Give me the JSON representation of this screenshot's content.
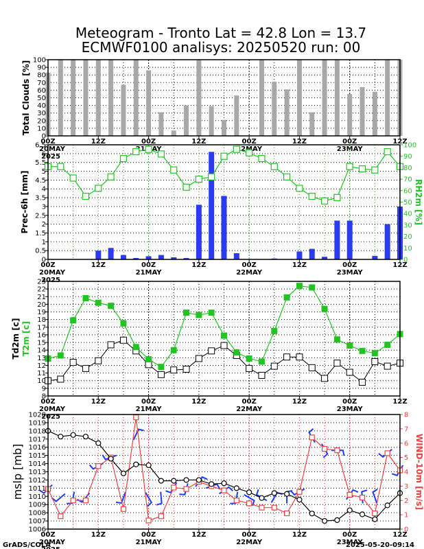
{
  "title": {
    "line1": "Meteogram - Tronto Lat = 42.8 Lon = 13.7",
    "line2": "ECMWF0100 analisys: 20250520 run: 00"
  },
  "footer": {
    "left": "GrADS/COLA",
    "right": "2025-05-20-09:14"
  },
  "colors": {
    "cloud_bar": "#a8a8a8",
    "precip_bar": "#2a3bf0",
    "rh": "#22c422",
    "t2m": "#22c422",
    "td2m": "#000000",
    "mslp": "#000000",
    "wind_speed": "#f04040",
    "wind_barb": "#1a3cff",
    "day_grid": "#22aa22",
    "wind_grid": "#e03030"
  },
  "chart_data": [
    {
      "type": "bar",
      "name": "clouds",
      "ylabel": "Total Clouds [%]",
      "ylim": [
        0,
        100
      ],
      "yticks": [
        0,
        10,
        20,
        30,
        40,
        50,
        60,
        70,
        80,
        90,
        100
      ],
      "x": [
        0,
        3,
        6,
        9,
        12,
        15,
        18,
        21,
        24,
        27,
        30,
        33,
        36,
        39,
        42,
        45,
        48,
        51,
        54,
        57,
        60,
        63,
        66,
        69,
        72,
        75,
        78,
        81,
        84
      ],
      "values": [
        83,
        100,
        100,
        100,
        100,
        100,
        67,
        100,
        86,
        31,
        7,
        40,
        99,
        39,
        21,
        53,
        0,
        100,
        71,
        61,
        100,
        31,
        100,
        100,
        55,
        64,
        58,
        100,
        100
      ],
      "xtick_labels": [
        "00Z",
        "12Z",
        "00Z",
        "12Z",
        "00Z",
        "12Z",
        "00Z",
        "12Z"
      ],
      "date_labels": [
        "20MAY",
        "21MAY",
        "22MAY",
        "23MAY"
      ],
      "year_label": "2025"
    },
    {
      "type": "bar+line",
      "name": "precip_rh",
      "ylabel": "Prec-6h [mm]",
      "y2label": "RH2m [%]",
      "ylim": [
        0,
        6.5
      ],
      "yticks": [
        0,
        0.5,
        1,
        1.5,
        2,
        2.5,
        3,
        3.5,
        4,
        4.5,
        5,
        5.5,
        6,
        6.5
      ],
      "y2lim": [
        0,
        100
      ],
      "y2ticks": [
        0,
        10,
        20,
        30,
        40,
        50,
        60,
        70,
        80,
        90,
        100
      ],
      "precip": {
        "x": [
          0,
          3,
          6,
          9,
          12,
          15,
          18,
          21,
          24,
          27,
          30,
          33,
          36,
          39,
          42,
          45,
          48,
          51,
          54,
          57,
          60,
          63,
          66,
          69,
          72,
          75,
          78,
          81,
          84
        ],
        "values": [
          0,
          0,
          0,
          0,
          0.5,
          0.65,
          0.25,
          0.08,
          0.18,
          0.25,
          0.12,
          0.08,
          3.1,
          6.1,
          3.6,
          0.35,
          0,
          0,
          0.05,
          0,
          0.45,
          0.6,
          0.15,
          2.2,
          2.2,
          0,
          0.2,
          2.0,
          3.0
        ]
      },
      "rh": {
        "x": [
          0,
          3,
          6,
          9,
          12,
          15,
          18,
          21,
          24,
          27,
          30,
          33,
          36,
          39,
          42,
          45,
          48,
          51,
          54,
          57,
          60,
          63,
          66,
          69,
          72,
          75,
          78,
          81,
          84
        ],
        "values": [
          81,
          81,
          71,
          55,
          62,
          72,
          88,
          94,
          96,
          92,
          78,
          63,
          70,
          72,
          90,
          96,
          93,
          88,
          81,
          72,
          62,
          55,
          51,
          54,
          81,
          79,
          78,
          94,
          81
        ]
      },
      "xtick_labels": [
        "00Z",
        "12Z",
        "00Z",
        "12Z",
        "00Z",
        "12Z",
        "00Z",
        "12Z"
      ],
      "date_labels": [
        "20MAY",
        "21MAY",
        "22MAY",
        "23MAY"
      ],
      "year_label": "2025"
    },
    {
      "type": "line",
      "name": "temperature",
      "ylabel": "Td2m [c]",
      "ylabel2": "T2m [c]",
      "ylim": [
        8,
        23
      ],
      "yticks": [
        8,
        9,
        10,
        11,
        12,
        13,
        14,
        15,
        16,
        17,
        18,
        19,
        20,
        21,
        22,
        23
      ],
      "t2m": {
        "x": [
          0,
          3,
          6,
          9,
          12,
          15,
          18,
          21,
          24,
          27,
          30,
          33,
          36,
          39,
          42,
          45,
          48,
          51,
          54,
          57,
          60,
          63,
          66,
          69,
          72,
          75,
          78,
          81,
          84
        ],
        "values": [
          12.9,
          13.3,
          17.9,
          20.8,
          20.2,
          19.8,
          17.5,
          14.4,
          12.8,
          11.8,
          14.0,
          18.9,
          18.6,
          18.9,
          15.9,
          13.7,
          12.9,
          12.5,
          16.5,
          20.9,
          22.4,
          22.2,
          19.4,
          15.4,
          14.6,
          13.9,
          13.6,
          14.7,
          16.1
        ]
      },
      "td2m": {
        "x": [
          0,
          3,
          6,
          9,
          12,
          15,
          18,
          21,
          24,
          27,
          30,
          33,
          36,
          39,
          42,
          45,
          48,
          51,
          54,
          57,
          60,
          63,
          66,
          69,
          72,
          75,
          78,
          81,
          84
        ],
        "values": [
          10.0,
          10.2,
          12.4,
          11.6,
          12.6,
          14.7,
          15.3,
          13.9,
          12.1,
          10.8,
          11.4,
          11.5,
          12.9,
          13.9,
          14.6,
          13.3,
          11.6,
          10.7,
          11.9,
          13.1,
          13.1,
          11.7,
          10.3,
          12.3,
          11.1,
          9.8,
          12.5,
          11.9,
          12.3
        ]
      },
      "xtick_labels": [
        "00Z",
        "12Z",
        "00Z",
        "12Z",
        "00Z",
        "12Z",
        "00Z",
        "12Z"
      ],
      "date_labels": [
        "20MAY",
        "21MAY",
        "22MAY",
        "23MAY"
      ],
      "year_label": "2025"
    },
    {
      "type": "line+barbs",
      "name": "pressure_wind",
      "ylabel": "mslp [mb]",
      "y2label": "WIND-10m [m/s]",
      "ylim": [
        1006,
        1020
      ],
      "yticks": [
        1006,
        1007,
        1008,
        1009,
        1010,
        1011,
        1012,
        1013,
        1014,
        1015,
        1016,
        1017,
        1018,
        1019,
        1020
      ],
      "y2lim": [
        0,
        8
      ],
      "y2ticks": [
        0,
        1,
        2,
        3,
        4,
        5,
        6,
        7,
        8
      ],
      "mslp": {
        "x": [
          0,
          3,
          6,
          9,
          12,
          15,
          18,
          21,
          24,
          27,
          30,
          33,
          36,
          39,
          42,
          45,
          48,
          51,
          54,
          57,
          60,
          63,
          66,
          69,
          72,
          75,
          78,
          81,
          84
        ],
        "values": [
          1018.0,
          1017.3,
          1017.5,
          1017.3,
          1016.5,
          1014.6,
          1012.8,
          1013.9,
          1013.8,
          1011.9,
          1011.9,
          1012.0,
          1012.0,
          1011.5,
          1011.6,
          1011.0,
          1010.5,
          1009.8,
          1010.4,
          1010.3,
          1009.6,
          1007.9,
          1007.0,
          1007.1,
          1008.3,
          1007.8,
          1007.2,
          1008.9,
          1010.4
        ]
      },
      "wind_speed": {
        "x": [
          0,
          3,
          6,
          9,
          12,
          15,
          18,
          21,
          24,
          27,
          30,
          33,
          36,
          39,
          42,
          45,
          48,
          51,
          54,
          57,
          60,
          63,
          66,
          69,
          72,
          75,
          78,
          81,
          84
        ],
        "values": [
          2.8,
          0.9,
          2.0,
          2.0,
          4.4,
          5.0,
          1.4,
          7.8,
          0.6,
          0.9,
          2.9,
          2.8,
          3.3,
          3.0,
          2.7,
          2.0,
          1.8,
          1.5,
          1.5,
          1.1,
          2.6,
          6.4,
          5.6,
          5.5,
          2.4,
          2.2,
          1.1,
          5.3,
          4.1
        ]
      },
      "wind_barbs": {
        "x": [
          0,
          3,
          6,
          9,
          12,
          15,
          18,
          21,
          24,
          27,
          30,
          33,
          36,
          39,
          42,
          45,
          48,
          51,
          54,
          57,
          60,
          63,
          66,
          69,
          72,
          75,
          78,
          81,
          84
        ],
        "dir": [
          225,
          230,
          190,
          220,
          240,
          250,
          200,
          25,
          150,
          175,
          210,
          195,
          35,
          70,
          55,
          190,
          120,
          300,
          30,
          0,
          240,
          330,
          150,
          90,
          35,
          355,
          340,
          230,
          210
        ]
      },
      "xtick_labels": [
        "00Z",
        "12Z",
        "00Z",
        "12Z",
        "00Z",
        "12Z",
        "00Z",
        "12Z"
      ],
      "date_labels": [
        "20MAY",
        "21MAY",
        "22MAY",
        "23MAY"
      ],
      "year_label": "2025"
    }
  ]
}
